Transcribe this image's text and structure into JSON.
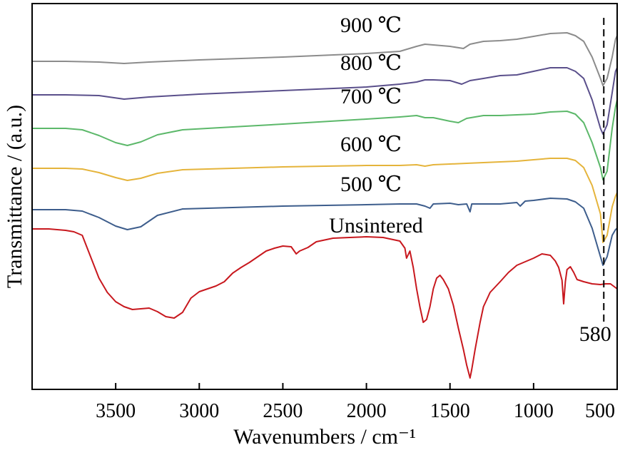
{
  "chart_data": {
    "type": "line",
    "xlabel": "Wavenumbers / cm⁻¹",
    "ylabel": "Transmittance / (a.u.)",
    "xlim": [
      4000,
      500
    ],
    "x_reversed": true,
    "y_ticks_shown": false,
    "xticks": [
      3500,
      3000,
      2500,
      2000,
      1500,
      1000,
      500
    ],
    "xtick_labels": [
      "3500",
      "3000",
      "2500",
      "2000",
      "1500",
      "1000",
      "500"
    ],
    "reference_line": {
      "x": 580,
      "label": "580",
      "style": "dashed"
    },
    "series": [
      {
        "name": "900 ℃",
        "color": "#8c8c8c",
        "points": [
          [
            4000,
            86
          ],
          [
            3800,
            86
          ],
          [
            3600,
            87
          ],
          [
            3450,
            89
          ],
          [
            3300,
            87
          ],
          [
            3000,
            84
          ],
          [
            2500,
            80
          ],
          [
            2000,
            75
          ],
          [
            1800,
            72
          ],
          [
            1700,
            65
          ],
          [
            1650,
            62
          ],
          [
            1600,
            63
          ],
          [
            1500,
            65
          ],
          [
            1420,
            68
          ],
          [
            1380,
            62
          ],
          [
            1300,
            58
          ],
          [
            1200,
            57
          ],
          [
            1100,
            55
          ],
          [
            1000,
            51
          ],
          [
            900,
            47
          ],
          [
            800,
            46
          ],
          [
            750,
            50
          ],
          [
            700,
            58
          ],
          [
            650,
            80
          ],
          [
            600,
            110
          ],
          [
            585,
            120
          ],
          [
            560,
            110
          ],
          [
            530,
            80
          ],
          [
            510,
            55
          ],
          [
            500,
            50
          ]
        ]
      },
      {
        "name": "800 ℃",
        "color": "#5a4f8b",
        "points": [
          [
            4000,
            133
          ],
          [
            3800,
            133
          ],
          [
            3600,
            134
          ],
          [
            3450,
            139
          ],
          [
            3300,
            136
          ],
          [
            3000,
            132
          ],
          [
            2500,
            127
          ],
          [
            2000,
            122
          ],
          [
            1800,
            118
          ],
          [
            1700,
            115
          ],
          [
            1650,
            112
          ],
          [
            1600,
            112
          ],
          [
            1500,
            113
          ],
          [
            1430,
            118
          ],
          [
            1380,
            113
          ],
          [
            1300,
            110
          ],
          [
            1200,
            106
          ],
          [
            1100,
            105
          ],
          [
            1000,
            100
          ],
          [
            900,
            95
          ],
          [
            800,
            95
          ],
          [
            750,
            100
          ],
          [
            700,
            110
          ],
          [
            650,
            140
          ],
          [
            600,
            180
          ],
          [
            585,
            188
          ],
          [
            560,
            175
          ],
          [
            530,
            130
          ],
          [
            510,
            100
          ],
          [
            500,
            95
          ]
        ]
      },
      {
        "name": "700 ℃",
        "color": "#5cb86a",
        "points": [
          [
            4000,
            180
          ],
          [
            3800,
            180
          ],
          [
            3700,
            182
          ],
          [
            3600,
            190
          ],
          [
            3500,
            200
          ],
          [
            3430,
            204
          ],
          [
            3350,
            199
          ],
          [
            3250,
            189
          ],
          [
            3100,
            182
          ],
          [
            2800,
            178
          ],
          [
            2500,
            174
          ],
          [
            2000,
            167
          ],
          [
            1800,
            164
          ],
          [
            1700,
            162
          ],
          [
            1650,
            165
          ],
          [
            1600,
            165
          ],
          [
            1500,
            170
          ],
          [
            1450,
            172
          ],
          [
            1400,
            166
          ],
          [
            1300,
            162
          ],
          [
            1200,
            162
          ],
          [
            1100,
            161
          ],
          [
            1000,
            160
          ],
          [
            900,
            157
          ],
          [
            800,
            156
          ],
          [
            750,
            160
          ],
          [
            700,
            172
          ],
          [
            650,
            200
          ],
          [
            600,
            235
          ],
          [
            585,
            252
          ],
          [
            560,
            240
          ],
          [
            530,
            180
          ],
          [
            510,
            150
          ],
          [
            500,
            140
          ]
        ]
      },
      {
        "name": "600 ℃",
        "color": "#e5b43b",
        "points": [
          [
            4000,
            236
          ],
          [
            3800,
            236
          ],
          [
            3700,
            237
          ],
          [
            3600,
            242
          ],
          [
            3500,
            249
          ],
          [
            3430,
            253
          ],
          [
            3350,
            250
          ],
          [
            3250,
            243
          ],
          [
            3100,
            238
          ],
          [
            2800,
            236
          ],
          [
            2500,
            234
          ],
          [
            2000,
            232
          ],
          [
            1800,
            232
          ],
          [
            1700,
            231
          ],
          [
            1650,
            233
          ],
          [
            1600,
            231
          ],
          [
            1500,
            230
          ],
          [
            1400,
            229
          ],
          [
            1300,
            228
          ],
          [
            1200,
            227
          ],
          [
            1100,
            226
          ],
          [
            1000,
            224
          ],
          [
            900,
            222
          ],
          [
            800,
            222
          ],
          [
            750,
            225
          ],
          [
            700,
            235
          ],
          [
            650,
            260
          ],
          [
            600,
            300
          ],
          [
            585,
            340
          ],
          [
            560,
            330
          ],
          [
            530,
            290
          ],
          [
            510,
            275
          ],
          [
            500,
            270
          ]
        ]
      },
      {
        "name": "500 ℃",
        "color": "#3d5d8c",
        "points": [
          [
            4000,
            294
          ],
          [
            3800,
            294
          ],
          [
            3700,
            296
          ],
          [
            3600,
            305
          ],
          [
            3500,
            317
          ],
          [
            3430,
            322
          ],
          [
            3350,
            318
          ],
          [
            3250,
            302
          ],
          [
            3100,
            293
          ],
          [
            2800,
            291
          ],
          [
            2500,
            289
          ],
          [
            2000,
            287
          ],
          [
            1800,
            286
          ],
          [
            1700,
            286
          ],
          [
            1650,
            289
          ],
          [
            1620,
            292
          ],
          [
            1600,
            286
          ],
          [
            1500,
            285
          ],
          [
            1450,
            287
          ],
          [
            1400,
            286
          ],
          [
            1380,
            297
          ],
          [
            1370,
            286
          ],
          [
            1300,
            286
          ],
          [
            1200,
            286
          ],
          [
            1100,
            284
          ],
          [
            1080,
            289
          ],
          [
            1050,
            282
          ],
          [
            1000,
            281
          ],
          [
            900,
            278
          ],
          [
            800,
            279
          ],
          [
            750,
            283
          ],
          [
            700,
            292
          ],
          [
            650,
            320
          ],
          [
            600,
            360
          ],
          [
            585,
            372
          ],
          [
            560,
            360
          ],
          [
            530,
            330
          ],
          [
            510,
            322
          ],
          [
            500,
            320
          ]
        ]
      },
      {
        "name": "Unsintered",
        "color": "#c8181e",
        "points": [
          [
            4000,
            321
          ],
          [
            3900,
            321
          ],
          [
            3800,
            323
          ],
          [
            3750,
            325
          ],
          [
            3700,
            330
          ],
          [
            3650,
            360
          ],
          [
            3600,
            390
          ],
          [
            3550,
            410
          ],
          [
            3500,
            423
          ],
          [
            3450,
            430
          ],
          [
            3400,
            434
          ],
          [
            3300,
            432
          ],
          [
            3250,
            437
          ],
          [
            3200,
            444
          ],
          [
            3150,
            446
          ],
          [
            3100,
            438
          ],
          [
            3050,
            418
          ],
          [
            3000,
            409
          ],
          [
            2950,
            405
          ],
          [
            2900,
            401
          ],
          [
            2850,
            395
          ],
          [
            2800,
            383
          ],
          [
            2750,
            375
          ],
          [
            2700,
            368
          ],
          [
            2650,
            360
          ],
          [
            2600,
            352
          ],
          [
            2550,
            348
          ],
          [
            2500,
            345
          ],
          [
            2450,
            346
          ],
          [
            2420,
            356
          ],
          [
            2400,
            352
          ],
          [
            2350,
            347
          ],
          [
            2300,
            339
          ],
          [
            2200,
            334
          ],
          [
            2100,
            333
          ],
          [
            2000,
            332
          ],
          [
            1900,
            333
          ],
          [
            1800,
            338
          ],
          [
            1770,
            348
          ],
          [
            1760,
            362
          ],
          [
            1740,
            352
          ],
          [
            1720,
            375
          ],
          [
            1700,
            405
          ],
          [
            1680,
            430
          ],
          [
            1660,
            452
          ],
          [
            1640,
            448
          ],
          [
            1620,
            430
          ],
          [
            1600,
            405
          ],
          [
            1580,
            390
          ],
          [
            1560,
            386
          ],
          [
            1540,
            392
          ],
          [
            1510,
            405
          ],
          [
            1480,
            428
          ],
          [
            1450,
            460
          ],
          [
            1420,
            490
          ],
          [
            1400,
            512
          ],
          [
            1380,
            530
          ],
          [
            1370,
            518
          ],
          [
            1350,
            490
          ],
          [
            1320,
            452
          ],
          [
            1300,
            430
          ],
          [
            1280,
            420
          ],
          [
            1260,
            410
          ],
          [
            1240,
            405
          ],
          [
            1200,
            395
          ],
          [
            1150,
            382
          ],
          [
            1100,
            372
          ],
          [
            1050,
            367
          ],
          [
            1000,
            362
          ],
          [
            950,
            356
          ],
          [
            900,
            358
          ],
          [
            870,
            366
          ],
          [
            850,
            375
          ],
          [
            830,
            393
          ],
          [
            820,
            426
          ],
          [
            810,
            395
          ],
          [
            800,
            378
          ],
          [
            780,
            374
          ],
          [
            760,
            382
          ],
          [
            740,
            392
          ],
          [
            700,
            395
          ],
          [
            650,
            398
          ],
          [
            600,
            399
          ],
          [
            570,
            398
          ],
          [
            540,
            398
          ],
          [
            500,
            405
          ]
        ]
      }
    ],
    "series_labels": [
      "900 ℃",
      "800 ℃",
      "700 ℃",
      "600 ℃",
      "500 ℃",
      "Unsintered"
    ]
  }
}
